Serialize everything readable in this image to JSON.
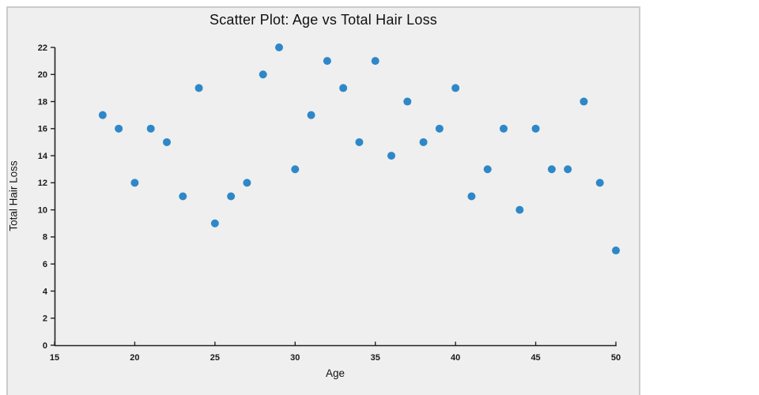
{
  "figure": {
    "title": "Scatter Plot: Age vs Total Hair Loss",
    "xlabel": "Age",
    "ylabel": "Total Hair Loss"
  },
  "chart_data": {
    "type": "scatter",
    "title": "Scatter Plot: Age vs Total Hair Loss",
    "xlabel": "Age",
    "ylabel": "Total Hair Loss",
    "xlim": [
      15,
      50
    ],
    "ylim": [
      0,
      22
    ],
    "xticks": [
      15,
      20,
      25,
      30,
      35,
      40,
      45,
      50
    ],
    "yticks": [
      0,
      2,
      4,
      6,
      8,
      10,
      12,
      14,
      16,
      18,
      20,
      22
    ],
    "grid": false,
    "legend_position": "none",
    "marker_color": "#2e87c9",
    "figure_background": "#efefef",
    "figure_border": "#cbcbcb",
    "axis_color": "#222222",
    "points": [
      [
        18,
        17
      ],
      [
        19,
        16
      ],
      [
        20,
        12
      ],
      [
        21,
        16
      ],
      [
        22,
        15
      ],
      [
        23,
        11
      ],
      [
        24,
        19
      ],
      [
        25,
        9
      ],
      [
        26,
        11
      ],
      [
        27,
        12
      ],
      [
        28,
        20
      ],
      [
        29,
        22
      ],
      [
        30,
        13
      ],
      [
        31,
        17
      ],
      [
        32,
        21
      ],
      [
        33,
        19
      ],
      [
        34,
        15
      ],
      [
        35,
        21
      ],
      [
        36,
        14
      ],
      [
        37,
        18
      ],
      [
        38,
        15
      ],
      [
        39,
        16
      ],
      [
        40,
        19
      ],
      [
        41,
        11
      ],
      [
        42,
        13
      ],
      [
        43,
        16
      ],
      [
        44,
        10
      ],
      [
        45,
        16
      ],
      [
        46,
        13
      ],
      [
        47,
        13
      ],
      [
        48,
        18
      ],
      [
        49,
        12
      ],
      [
        50,
        7
      ]
    ]
  }
}
